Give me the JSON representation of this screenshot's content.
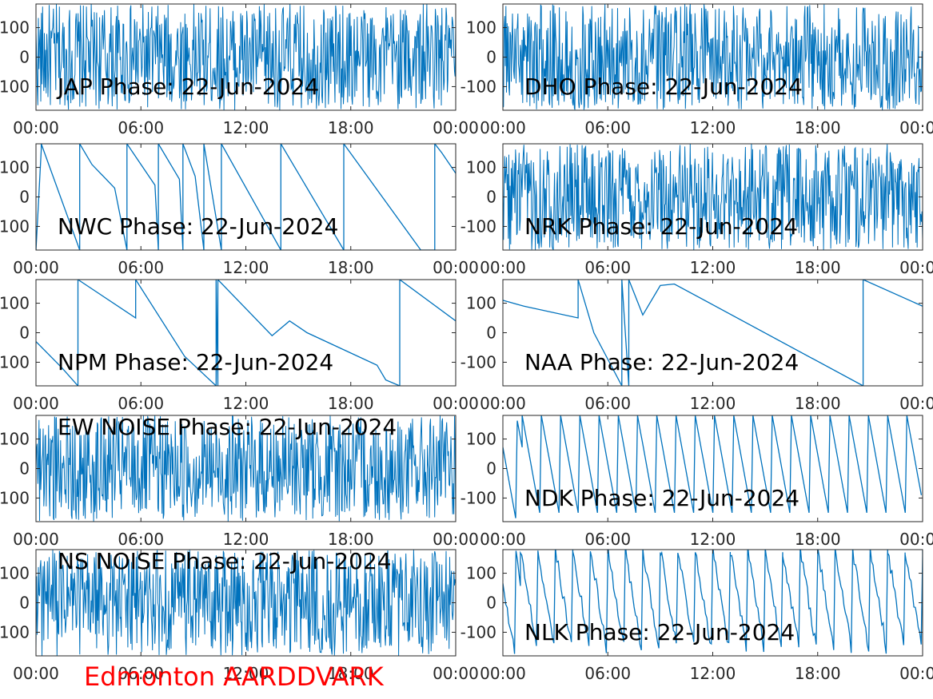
{
  "figure": {
    "footer": "Edmonton AARDDVARK",
    "footer_color": "#ff0000",
    "line_color": "#0072bd"
  },
  "chart_data": [
    {
      "type": "line",
      "title": "JAP Phase: 22-Jun-2024",
      "pattern": "noise",
      "xlim": [
        0,
        24
      ],
      "ylim": [
        -180,
        180
      ],
      "xticks": [
        "00:00",
        "06:00",
        "12:00",
        "18:00",
        "00:00"
      ],
      "yticks": [
        "-100",
        "0",
        "100"
      ],
      "series": [
        {
          "x": [
            0,
            24
          ],
          "y": [
            -180,
            180
          ]
        }
      ]
    },
    {
      "type": "line",
      "title": "DHO Phase: 22-Jun-2024",
      "pattern": "noise",
      "xlim": [
        0,
        24
      ],
      "ylim": [
        -180,
        180
      ],
      "xticks": [
        "00:00",
        "06:00",
        "12:00",
        "18:00",
        "00:00"
      ],
      "yticks": [
        "-100",
        "0",
        "100"
      ],
      "series": [
        {
          "x": [
            0,
            24
          ],
          "y": [
            -180,
            180
          ]
        }
      ]
    },
    {
      "type": "line",
      "title": "NWC Phase: 22-Jun-2024",
      "pattern": "trace",
      "xlim": [
        0,
        24
      ],
      "ylim": [
        -180,
        180
      ],
      "xticks": [
        "00:00",
        "06:00",
        "12:00",
        "18:00",
        "00:00"
      ],
      "yticks": [
        "-100",
        "0",
        "100"
      ],
      "series": [
        {
          "x": [
            0,
            0.3,
            0.3,
            2.5,
            2.5,
            3.2,
            4.5,
            5.2,
            5.2,
            6.8,
            7.0,
            7.0,
            8.2,
            8.4,
            8.4,
            9.1,
            9.6,
            9.6,
            10.6,
            10.6,
            14.0,
            14.0,
            17.6,
            17.6,
            22.0,
            22.8,
            22.8,
            23.2,
            24.0
          ],
          "y": [
            -180,
            160,
            180,
            -180,
            180,
            110,
            30,
            -180,
            180,
            40,
            -180,
            180,
            60,
            -180,
            180,
            70,
            -180,
            180,
            -180,
            180,
            -180,
            180,
            -180,
            180,
            -180,
            -180,
            180,
            150,
            80
          ]
        }
      ]
    },
    {
      "type": "line",
      "title": "NRK Phase: 22-Jun-2024",
      "pattern": "noise",
      "xlim": [
        0,
        24
      ],
      "ylim": [
        -180,
        180
      ],
      "xticks": [
        "00:00",
        "06:00",
        "12:00",
        "18:00",
        "00:00"
      ],
      "yticks": [
        "-100",
        "0",
        "100"
      ],
      "series": [
        {
          "x": [
            0,
            24
          ],
          "y": [
            -180,
            180
          ]
        }
      ]
    },
    {
      "type": "line",
      "title": "NPM Phase: 22-Jun-2024",
      "pattern": "trace",
      "xlim": [
        0,
        24
      ],
      "ylim": [
        -180,
        180
      ],
      "xticks": [
        "00:00",
        "06:00",
        "12:00",
        "18:00",
        "00:00"
      ],
      "yticks": [
        "-100",
        "0",
        "100"
      ],
      "series": [
        {
          "x": [
            0,
            1.5,
            2.4,
            2.4,
            5.7,
            5.7,
            8.5,
            10.3,
            10.3,
            10.4,
            10.4,
            13.5,
            14.5,
            15.5,
            19.5,
            20.0,
            20.8,
            20.8,
            24.0
          ],
          "y": [
            -30,
            -120,
            -180,
            180,
            50,
            180,
            -80,
            -180,
            180,
            -180,
            180,
            -10,
            40,
            0,
            -110,
            -160,
            -180,
            180,
            40
          ]
        }
      ]
    },
    {
      "type": "line",
      "title": "NAA Phase: 22-Jun-2024",
      "pattern": "trace",
      "xlim": [
        0,
        24
      ],
      "ylim": [
        -180,
        180
      ],
      "xticks": [
        "00:00",
        "06:00",
        "12:00",
        "18:00",
        "00:00"
      ],
      "yticks": [
        "-100",
        "0",
        "100"
      ],
      "series": [
        {
          "x": [
            0,
            1.2,
            4.3,
            4.3,
            5.2,
            6.8,
            6.8,
            7.2,
            7.2,
            8.0,
            8.2,
            9.0,
            9.8,
            20.6,
            20.6,
            24.0
          ],
          "y": [
            110,
            90,
            50,
            180,
            0,
            -180,
            180,
            -180,
            180,
            60,
            80,
            160,
            165,
            -180,
            180,
            90
          ]
        }
      ]
    },
    {
      "type": "line",
      "title": "EW NOISE Phase: 22-Jun-2024",
      "pattern": "noise",
      "xlim": [
        0,
        24
      ],
      "ylim": [
        -180,
        180
      ],
      "xticks": [
        "00:00",
        "06:00",
        "12:00",
        "18:00",
        "00:00"
      ],
      "yticks": [
        "-100",
        "0",
        "100"
      ],
      "series": [
        {
          "x": [
            0,
            24
          ],
          "y": [
            -180,
            180
          ]
        }
      ]
    },
    {
      "type": "line",
      "title": "NDK Phase: 22-Jun-2024",
      "pattern": "sawtooth",
      "xlim": [
        0,
        24
      ],
      "ylim": [
        -180,
        180
      ],
      "xticks": [
        "00:00",
        "06:00",
        "12:00",
        "18:00",
        "00:00"
      ],
      "yticks": [
        "-100",
        "0",
        "100"
      ],
      "series": [
        {
          "x": [
            0,
            24
          ],
          "y": [
            180,
            -180
          ]
        }
      ]
    },
    {
      "type": "line",
      "title": "NS NOISE Phase: 22-Jun-2024",
      "pattern": "noise",
      "xlim": [
        0,
        24
      ],
      "ylim": [
        -180,
        180
      ],
      "xticks": [
        "00:00",
        "06:00",
        "12:00",
        "18:00",
        "00:00"
      ],
      "yticks": [
        "-100",
        "0",
        "100"
      ],
      "series": [
        {
          "x": [
            0,
            24
          ],
          "y": [
            -180,
            180
          ]
        }
      ]
    },
    {
      "type": "line",
      "title": "NLK Phase: 22-Jun-2024",
      "pattern": "sawtooth_noisy",
      "xlim": [
        0,
        24
      ],
      "ylim": [
        -180,
        180
      ],
      "xticks": [
        "00:00",
        "06:00",
        "12:00",
        "18:00",
        "00:00"
      ],
      "yticks": [
        "-100",
        "0",
        "100"
      ],
      "series": [
        {
          "x": [
            0,
            24
          ],
          "y": [
            180,
            -180
          ]
        }
      ]
    }
  ]
}
